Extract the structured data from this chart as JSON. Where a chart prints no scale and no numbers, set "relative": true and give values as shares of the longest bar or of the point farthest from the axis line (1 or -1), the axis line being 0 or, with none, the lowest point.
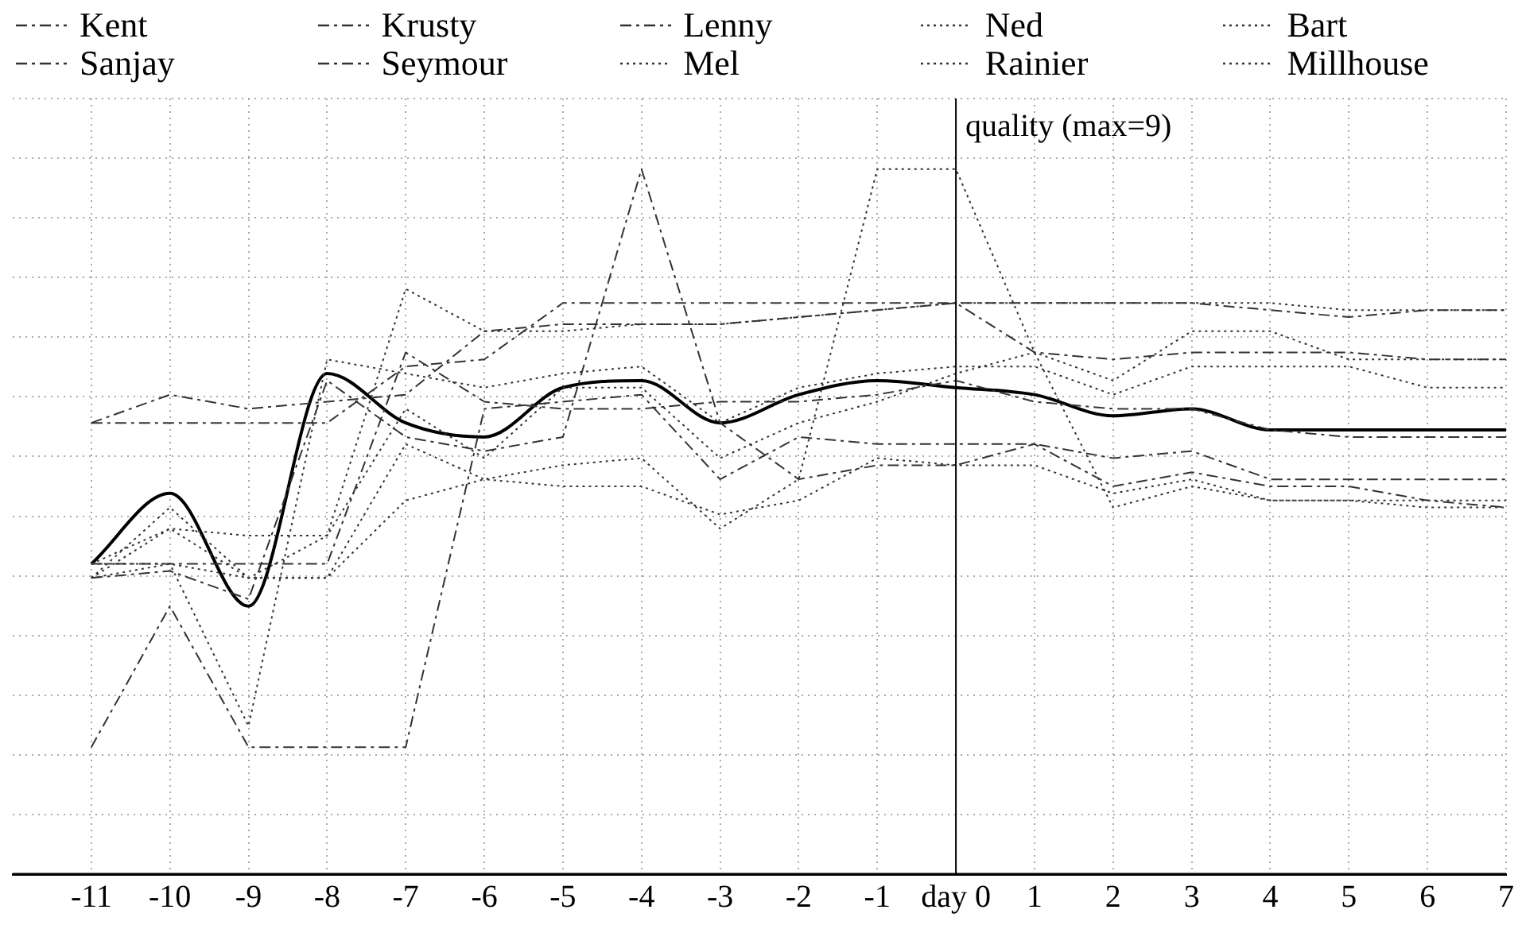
{
  "chart_data": {
    "type": "line",
    "relative": true,
    "grid": true,
    "legend": "top",
    "marker": "none",
    "x": [
      -11,
      -10,
      -9,
      -8,
      -7,
      -6,
      -5,
      -4,
      -3,
      -2,
      -1,
      0,
      1,
      2,
      3,
      4,
      5,
      6,
      7
    ],
    "xlim": [
      -12,
      7
    ],
    "xticks": [
      -11,
      -10,
      -9,
      -8,
      -7,
      -6,
      -5,
      -4,
      -3,
      -2,
      -1,
      {
        "value": 0,
        "label": "day 0"
      },
      1,
      2,
      3,
      4,
      5,
      6,
      7
    ],
    "ylabel": "quality (max=9)",
    "ref_lines": [
      {
        "axis": "x",
        "value": 0,
        "color": "#000000",
        "line_style": "solid"
      }
    ],
    "series": [
      {
        "name": "Kent",
        "color": "#333333",
        "line_style": "dashed",
        "values": [
          0.64,
          0.64,
          0.64,
          0.64,
          0.72,
          0.73,
          0.81,
          0.81,
          0.81,
          0.81,
          0.81,
          0.81,
          0.81,
          0.81,
          0.81,
          0.8,
          0.79,
          0.8,
          0.8
        ]
      },
      {
        "name": "Krusty",
        "color": "#333333",
        "line_style": "dashed",
        "values": [
          0.64,
          0.68,
          0.66,
          0.67,
          0.68,
          0.77,
          0.78,
          0.78,
          0.78,
          0.79,
          0.8,
          0.81,
          0.74,
          0.73,
          0.74,
          0.74,
          0.74,
          0.73,
          0.73
        ]
      },
      {
        "name": "Lenny",
        "color": "#333333",
        "line_style": "dashed",
        "values": [
          0.18,
          0.38,
          0.18,
          0.18,
          0.18,
          0.66,
          0.67,
          0.68,
          0.56,
          0.62,
          0.61,
          0.61,
          0.61,
          0.59,
          0.6,
          0.56,
          0.56,
          0.56,
          0.56
        ]
      },
      {
        "name": "Ned",
        "color": "#333333",
        "line_style": "dotted",
        "values": [
          0.44,
          0.44,
          0.21,
          0.73,
          0.71,
          0.69,
          0.71,
          0.72,
          0.64,
          0.69,
          0.71,
          0.72,
          0.72,
          0.68,
          0.72,
          0.72,
          0.72,
          0.69,
          0.69
        ]
      },
      {
        "name": "Bart",
        "color": "#333333",
        "line_style": "dotted",
        "values": [
          0.42,
          0.52,
          0.42,
          0.42,
          0.61,
          0.56,
          0.55,
          0.55,
          0.51,
          0.53,
          0.59,
          0.58,
          0.58,
          0.54,
          0.56,
          0.53,
          0.53,
          0.53,
          0.53
        ]
      },
      {
        "name": "Sanjay",
        "color": "#333333",
        "line_style": "dashed",
        "values": [
          0.44,
          0.44,
          0.44,
          0.44,
          0.74,
          0.67,
          0.66,
          0.66,
          0.67,
          0.67,
          0.68,
          0.7,
          0.67,
          0.66,
          0.66,
          0.63,
          0.62,
          0.62,
          0.62
        ]
      },
      {
        "name": "Seymour",
        "color": "#333333",
        "line_style": "dashed",
        "values": [
          0.42,
          0.43,
          0.39,
          0.7,
          0.62,
          0.6,
          0.62,
          1,
          0.64,
          0.56,
          0.58,
          0.58,
          0.61,
          0.55,
          0.57,
          0.55,
          0.55,
          0.53,
          0.52
        ]
      },
      {
        "name": "Mel",
        "color": "#333333",
        "line_style": "dotted",
        "values": [
          0.42,
          0.49,
          0.42,
          0.42,
          0.53,
          0.56,
          0.58,
          0.59,
          0.49,
          0.56,
          1,
          1,
          0.74,
          0.52,
          0.55,
          0.53,
          0.53,
          0.52,
          0.52
        ]
      },
      {
        "name": "Rainier",
        "color": "#333333",
        "line_style": "dotted",
        "values": [
          0.42,
          0.44,
          0.42,
          0.48,
          0.83,
          0.77,
          0.77,
          0.78,
          0.78,
          0.79,
          0.8,
          0.81,
          0.81,
          0.81,
          0.81,
          0.81,
          0.8,
          0.8,
          0.8
        ]
      },
      {
        "name": "Millhouse",
        "color": "#333333",
        "line_style": "dotted",
        "values": [
          0.44,
          0.49,
          0.48,
          0.48,
          0.66,
          0.59,
          0.69,
          0.69,
          0.59,
          0.64,
          0.67,
          0.71,
          0.74,
          0.7,
          0.77,
          0.77,
          0.73,
          0.73,
          0.73
        ]
      },
      {
        "color": "#000000",
        "line_style": "solid",
        "values": [
          0.44,
          0.54,
          0.38,
          0.71,
          0.64,
          0.62,
          0.69,
          0.7,
          0.64,
          0.68,
          0.7,
          0.69,
          0.68,
          0.65,
          0.66,
          0.63,
          0.63,
          0.63,
          0.63
        ]
      }
    ]
  }
}
